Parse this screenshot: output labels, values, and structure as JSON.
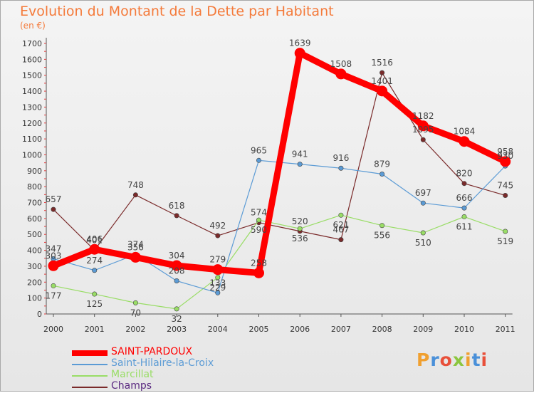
{
  "title": "Evolution du Montant de la Dette par Habitant",
  "unit": "(en €)",
  "logo_text": "Proxiti",
  "chart_data": {
    "type": "line",
    "x": [
      "2000",
      "2001",
      "2002",
      "2003",
      "2004",
      "2005",
      "2006",
      "2007",
      "2008",
      "2009",
      "2010",
      "2011"
    ],
    "ylim": [
      0,
      1700
    ],
    "yticks": [
      0,
      100,
      200,
      300,
      400,
      500,
      600,
      700,
      800,
      900,
      1000,
      1100,
      1200,
      1300,
      1400,
      1500,
      1600,
      1700
    ],
    "grid": false,
    "legend_position": "bottom-left",
    "series": [
      {
        "name": "SAINT-PARDOUX",
        "color": "#ff0000",
        "values": [
          303,
          406,
          356,
          304,
          279,
          258,
          1639,
          1508,
          1401,
          1182,
          1084,
          958
        ]
      },
      {
        "name": "Saint-Hilaire-la-Croix",
        "color": "#5b9bd5",
        "values": [
          347,
          274,
          374,
          208,
          133,
          965,
          941,
          916,
          879,
          697,
          666,
          930
        ]
      },
      {
        "name": "Marcillat",
        "color": "#99dd66",
        "values": [
          177,
          125,
          70,
          32,
          229,
          590,
          536,
          621,
          556,
          510,
          611,
          519
        ]
      },
      {
        "name": "Champs",
        "color": "#7a2a2a",
        "values": [
          657,
          401,
          748,
          618,
          492,
          574,
          520,
          467,
          1516,
          1095,
          820,
          745
        ]
      }
    ]
  }
}
